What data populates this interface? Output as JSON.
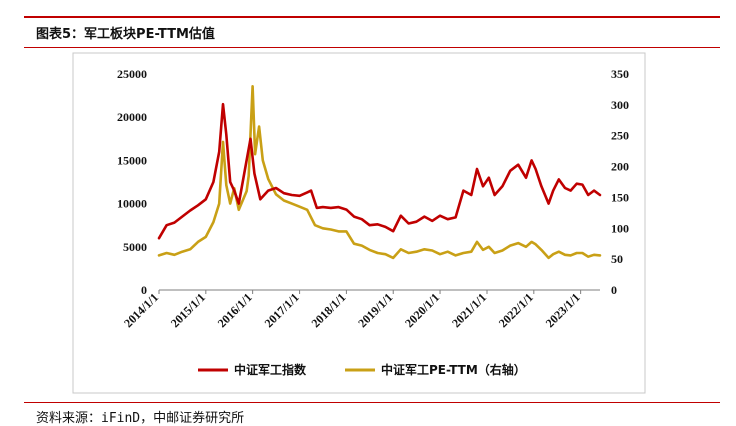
{
  "figure": {
    "title": "图表5：军工板块PE-TTM估值",
    "source": "资料来源：iFinD，中邮证券研究所"
  },
  "colors": {
    "accent": "#c00000",
    "left_series": "#c00000",
    "right_series": "#c9a016"
  },
  "chart_data": {
    "type": "line",
    "title": "",
    "xlabel": "",
    "ylabel": "",
    "x_range": [
      "2014-01-01",
      "2023-06-01"
    ],
    "x_ticks": [
      "2014/1/1",
      "2015/1/1",
      "2016/1/1",
      "2017/1/1",
      "2018/1/1",
      "2019/1/1",
      "2020/1/1",
      "2021/1/1",
      "2022/1/1",
      "2023/1/1"
    ],
    "y_left": {
      "range": [
        0,
        25000
      ],
      "ticks": [
        "0",
        "5000",
        "10000",
        "15000",
        "20000",
        "25000"
      ]
    },
    "y_right": {
      "range": [
        0,
        350
      ],
      "ticks": [
        "0",
        "50",
        "100",
        "150",
        "200",
        "250",
        "300",
        "350"
      ]
    },
    "legend_position": "bottom",
    "grid": false,
    "series": [
      {
        "name": "中证军工指数",
        "axis": "left",
        "points": [
          [
            "2014-01-01",
            6000
          ],
          [
            "2014-03-01",
            7500
          ],
          [
            "2014-05-01",
            7800
          ],
          [
            "2014-07-01",
            8500
          ],
          [
            "2014-09-01",
            9200
          ],
          [
            "2014-11-01",
            9800
          ],
          [
            "2015-01-01",
            10500
          ],
          [
            "2015-03-01",
            12500
          ],
          [
            "2015-04-15",
            16000
          ],
          [
            "2015-05-15",
            21500
          ],
          [
            "2015-06-10",
            18000
          ],
          [
            "2015-07-10",
            12500
          ],
          [
            "2015-08-10",
            11500
          ],
          [
            "2015-09-15",
            10000
          ],
          [
            "2015-11-15",
            15000
          ],
          [
            "2015-12-15",
            17500
          ],
          [
            "2016-01-15",
            13500
          ],
          [
            "2016-03-01",
            10500
          ],
          [
            "2016-05-01",
            11500
          ],
          [
            "2016-07-01",
            11800
          ],
          [
            "2016-09-01",
            11200
          ],
          [
            "2016-11-01",
            11000
          ],
          [
            "2017-01-01",
            10900
          ],
          [
            "2017-03-01",
            11300
          ],
          [
            "2017-04-01",
            11500
          ],
          [
            "2017-05-15",
            9500
          ],
          [
            "2017-07-01",
            9600
          ],
          [
            "2017-09-01",
            9500
          ],
          [
            "2017-11-01",
            9600
          ],
          [
            "2018-01-01",
            9300
          ],
          [
            "2018-03-01",
            8500
          ],
          [
            "2018-05-01",
            8200
          ],
          [
            "2018-07-01",
            7500
          ],
          [
            "2018-09-01",
            7600
          ],
          [
            "2018-11-01",
            7300
          ],
          [
            "2019-01-01",
            6800
          ],
          [
            "2019-03-01",
            8600
          ],
          [
            "2019-05-01",
            7700
          ],
          [
            "2019-07-01",
            7900
          ],
          [
            "2019-09-01",
            8500
          ],
          [
            "2019-11-01",
            8000
          ],
          [
            "2020-01-01",
            8600
          ],
          [
            "2020-03-01",
            8200
          ],
          [
            "2020-05-01",
            8400
          ],
          [
            "2020-07-01",
            11500
          ],
          [
            "2020-09-01",
            11000
          ],
          [
            "2020-10-15",
            14000
          ],
          [
            "2020-12-01",
            12000
          ],
          [
            "2021-01-15",
            13000
          ],
          [
            "2021-03-01",
            11000
          ],
          [
            "2021-05-01",
            12000
          ],
          [
            "2021-07-01",
            13800
          ],
          [
            "2021-09-01",
            14500
          ],
          [
            "2021-11-01",
            13000
          ],
          [
            "2021-12-15",
            15000
          ],
          [
            "2022-01-15",
            14000
          ],
          [
            "2022-03-01",
            12000
          ],
          [
            "2022-04-26",
            10000
          ],
          [
            "2022-06-01",
            11500
          ],
          [
            "2022-07-15",
            12800
          ],
          [
            "2022-09-01",
            11800
          ],
          [
            "2022-10-15",
            11500
          ],
          [
            "2022-12-01",
            12300
          ],
          [
            "2023-01-15",
            12200
          ],
          [
            "2023-03-01",
            11000
          ],
          [
            "2023-04-15",
            11500
          ],
          [
            "2023-06-01",
            11000
          ]
        ]
      },
      {
        "name": "中证军工PE-TTM（右轴）",
        "axis": "right",
        "points": [
          [
            "2014-01-01",
            56
          ],
          [
            "2014-03-01",
            60
          ],
          [
            "2014-05-01",
            57
          ],
          [
            "2014-07-01",
            62
          ],
          [
            "2014-09-01",
            66
          ],
          [
            "2014-11-01",
            78
          ],
          [
            "2015-01-01",
            86
          ],
          [
            "2015-03-01",
            110
          ],
          [
            "2015-04-15",
            140
          ],
          [
            "2015-05-15",
            240
          ],
          [
            "2015-06-10",
            170
          ],
          [
            "2015-07-10",
            140
          ],
          [
            "2015-08-10",
            165
          ],
          [
            "2015-09-15",
            130
          ],
          [
            "2015-11-15",
            160
          ],
          [
            "2015-12-01",
            185
          ],
          [
            "2016-01-01",
            330
          ],
          [
            "2016-01-20",
            220
          ],
          [
            "2016-02-20",
            265
          ],
          [
            "2016-03-20",
            210
          ],
          [
            "2016-05-01",
            180
          ],
          [
            "2016-07-01",
            155
          ],
          [
            "2016-09-01",
            145
          ],
          [
            "2016-11-01",
            140
          ],
          [
            "2017-01-01",
            135
          ],
          [
            "2017-03-01",
            130
          ],
          [
            "2017-05-01",
            105
          ],
          [
            "2017-07-01",
            100
          ],
          [
            "2017-09-01",
            98
          ],
          [
            "2017-11-01",
            95
          ],
          [
            "2018-01-01",
            95
          ],
          [
            "2018-03-01",
            75
          ],
          [
            "2018-05-01",
            72
          ],
          [
            "2018-07-01",
            65
          ],
          [
            "2018-09-01",
            60
          ],
          [
            "2018-11-01",
            58
          ],
          [
            "2019-01-01",
            52
          ],
          [
            "2019-03-01",
            66
          ],
          [
            "2019-05-01",
            60
          ],
          [
            "2019-07-01",
            62
          ],
          [
            "2019-09-01",
            66
          ],
          [
            "2019-11-01",
            64
          ],
          [
            "2020-01-01",
            58
          ],
          [
            "2020-03-01",
            62
          ],
          [
            "2020-05-01",
            56
          ],
          [
            "2020-07-01",
            60
          ],
          [
            "2020-09-01",
            62
          ],
          [
            "2020-10-15",
            78
          ],
          [
            "2020-12-01",
            65
          ],
          [
            "2021-01-15",
            70
          ],
          [
            "2021-03-01",
            60
          ],
          [
            "2021-05-01",
            64
          ],
          [
            "2021-07-01",
            72
          ],
          [
            "2021-09-01",
            76
          ],
          [
            "2021-11-01",
            70
          ],
          [
            "2021-12-15",
            78
          ],
          [
            "2022-01-15",
            74
          ],
          [
            "2022-03-01",
            65
          ],
          [
            "2022-04-26",
            52
          ],
          [
            "2022-06-01",
            58
          ],
          [
            "2022-07-15",
            62
          ],
          [
            "2022-09-01",
            57
          ],
          [
            "2022-10-15",
            56
          ],
          [
            "2022-12-01",
            60
          ],
          [
            "2023-01-15",
            60
          ],
          [
            "2023-03-01",
            54
          ],
          [
            "2023-04-15",
            57
          ],
          [
            "2023-06-01",
            56
          ]
        ]
      }
    ]
  }
}
